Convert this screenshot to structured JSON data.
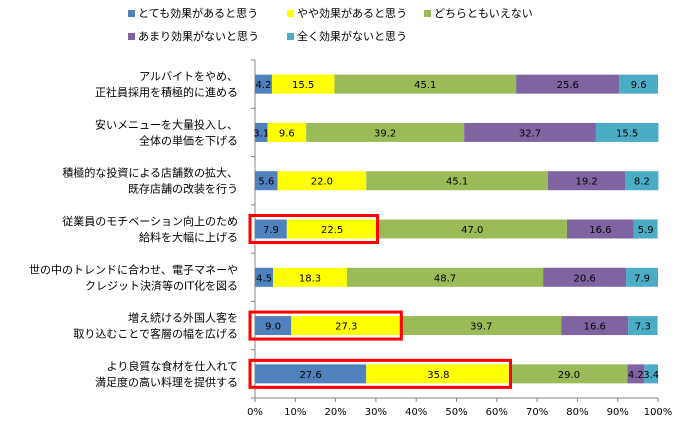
{
  "chart_data": {
    "type": "bar",
    "orientation": "horizontal",
    "stacked": true,
    "percent_scale": true,
    "categories": [
      [
        "アルバイトをやめ、",
        "正社員採用を積極的に進める"
      ],
      [
        "安いメニューを大量投入し、",
        "全体の単価を下げる"
      ],
      [
        "積極的な投資による店舗数の拡大、",
        "既存店舗の改装を行う"
      ],
      [
        "従業員のモチベーション向上のため",
        "給料を大幅に上げる"
      ],
      [
        "世の中のトレンドに合わせ、電子マネーや",
        "クレジット決済等のIT化を図る"
      ],
      [
        "増え続ける外国人客を",
        "取り込むことで客層の幅を広げる"
      ],
      [
        "より良質な食材を仕入れて",
        "満足度の高い料理を提供する"
      ]
    ],
    "series": [
      {
        "name": "とても効果があると思う",
        "color": "#4f81bd",
        "values": [
          4.2,
          3.1,
          5.6,
          7.9,
          4.5,
          9.0,
          27.6
        ]
      },
      {
        "name": "やや効果があると思う",
        "color": "#ffff00",
        "values": [
          15.5,
          9.6,
          22.0,
          22.5,
          18.3,
          27.3,
          35.8
        ]
      },
      {
        "name": "どちらともいえない",
        "color": "#9bbb59",
        "values": [
          45.1,
          39.2,
          45.1,
          47.0,
          48.7,
          39.7,
          29.0
        ]
      },
      {
        "name": "あまり効果がないと思う",
        "color": "#8064a2",
        "values": [
          25.6,
          32.7,
          19.2,
          16.6,
          20.6,
          16.6,
          4.2
        ]
      },
      {
        "name": "全く効果がないと思う",
        "color": "#4bacc6",
        "values": [
          9.6,
          15.5,
          8.2,
          5.9,
          7.9,
          7.3,
          3.4
        ]
      }
    ],
    "highlight_boxes": [
      {
        "row": 3,
        "color": "#ff0000",
        "end_percent": 30.4
      },
      {
        "row": 5,
        "color": "#ff0000",
        "end_percent": 36.3
      },
      {
        "row": 6,
        "color": "#ff0000",
        "end_percent": 63.4
      }
    ],
    "x_ticks": [
      "0%",
      "10%",
      "20%",
      "30%",
      "40%",
      "50%",
      "60%",
      "70%",
      "80%",
      "90%",
      "100%"
    ],
    "xlim": [
      0,
      100
    ],
    "legend_position": "top",
    "grid": false
  }
}
